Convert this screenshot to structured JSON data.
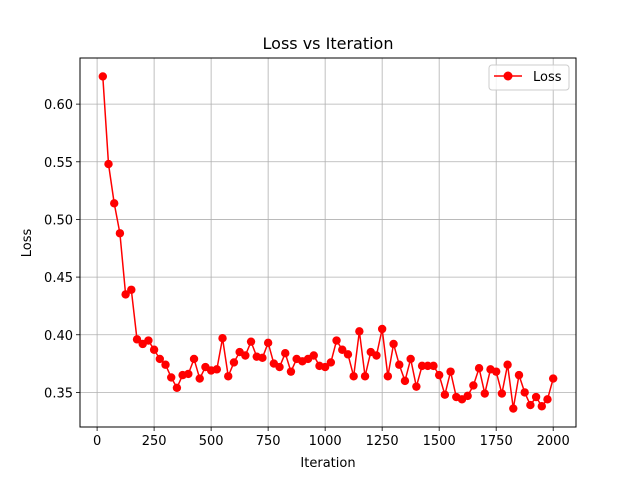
{
  "chart_data": {
    "type": "line",
    "title": "Loss vs Iteration",
    "xlabel": "Iteration",
    "ylabel": "Loss",
    "xlim": [
      -75,
      2100
    ],
    "ylim": [
      0.32,
      0.64
    ],
    "xticks": [
      0,
      250,
      500,
      750,
      1000,
      1250,
      1500,
      1750,
      2000
    ],
    "yticks": [
      0.35,
      0.4,
      0.45,
      0.5,
      0.55,
      0.6
    ],
    "xtick_labels": [
      "0",
      "250",
      "500",
      "750",
      "1000",
      "1250",
      "1500",
      "1750",
      "2000"
    ],
    "ytick_labels": [
      "0.35",
      "0.40",
      "0.45",
      "0.50",
      "0.55",
      "0.60"
    ],
    "grid": true,
    "legend_position": "top-right",
    "series": [
      {
        "name": "Loss",
        "color": "#ff0000",
        "marker": "circle",
        "x": [
          25,
          50,
          75,
          100,
          125,
          150,
          175,
          200,
          225,
          250,
          275,
          300,
          325,
          350,
          375,
          400,
          425,
          450,
          475,
          500,
          525,
          550,
          575,
          600,
          625,
          650,
          675,
          700,
          725,
          750,
          775,
          800,
          825,
          850,
          875,
          900,
          925,
          950,
          975,
          1000,
          1025,
          1050,
          1075,
          1100,
          1125,
          1150,
          1175,
          1200,
          1225,
          1250,
          1275,
          1300,
          1325,
          1350,
          1375,
          1400,
          1425,
          1450,
          1475,
          1500,
          1525,
          1550,
          1575,
          1600,
          1625,
          1650,
          1675,
          1700,
          1725,
          1750,
          1775,
          1800,
          1825,
          1850,
          1875,
          1900,
          1925,
          1950,
          1975,
          2000
        ],
        "y": [
          0.624,
          0.548,
          0.514,
          0.488,
          0.435,
          0.439,
          0.396,
          0.392,
          0.395,
          0.387,
          0.379,
          0.374,
          0.363,
          0.354,
          0.365,
          0.366,
          0.379,
          0.362,
          0.372,
          0.369,
          0.37,
          0.397,
          0.364,
          0.376,
          0.385,
          0.382,
          0.394,
          0.381,
          0.38,
          0.393,
          0.375,
          0.372,
          0.384,
          0.368,
          0.379,
          0.377,
          0.379,
          0.382,
          0.373,
          0.372,
          0.376,
          0.395,
          0.387,
          0.383,
          0.364,
          0.403,
          0.364,
          0.385,
          0.382,
          0.405,
          0.364,
          0.392,
          0.374,
          0.36,
          0.379,
          0.355,
          0.373,
          0.373,
          0.373,
          0.365,
          0.348,
          0.368,
          0.346,
          0.344,
          0.347,
          0.356,
          0.371,
          0.349,
          0.37,
          0.368,
          0.349,
          0.374,
          0.336,
          0.365,
          0.35,
          0.339,
          0.346,
          0.338,
          0.344,
          0.362
        ]
      }
    ]
  }
}
